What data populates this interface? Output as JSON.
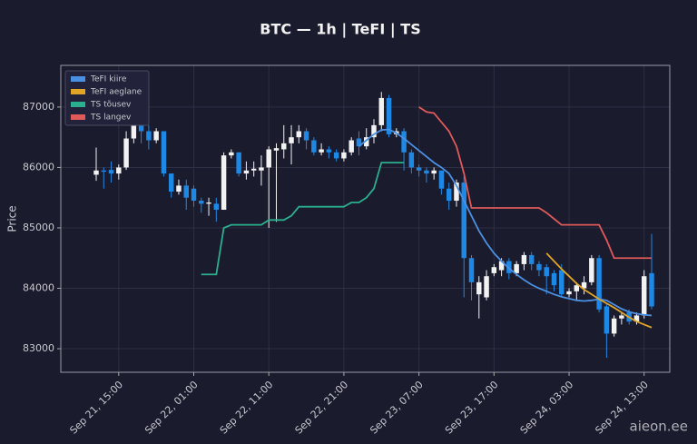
{
  "chart_data": {
    "type": "candlestick",
    "title": "BTC — 1h  |  TeFI  |  TS",
    "y_label": "Price",
    "watermark": "aieon.ee",
    "x": [
      "Sep 21, 12:00",
      "Sep 21, 13:00",
      "Sep 21, 14:00",
      "Sep 21, 15:00",
      "Sep 21, 16:00",
      "Sep 21, 17:00",
      "Sep 21, 18:00",
      "Sep 21, 19:00",
      "Sep 21, 20:00",
      "Sep 21, 21:00",
      "Sep 21, 22:00",
      "Sep 21, 23:00",
      "Sep 22, 00:00",
      "Sep 22, 01:00",
      "Sep 22, 02:00",
      "Sep 22, 03:00",
      "Sep 22, 04:00",
      "Sep 22, 05:00",
      "Sep 22, 06:00",
      "Sep 22, 07:00",
      "Sep 22, 08:00",
      "Sep 22, 09:00",
      "Sep 22, 10:00",
      "Sep 22, 11:00",
      "Sep 22, 12:00",
      "Sep 22, 13:00",
      "Sep 22, 14:00",
      "Sep 22, 15:00",
      "Sep 22, 16:00",
      "Sep 22, 17:00",
      "Sep 22, 18:00",
      "Sep 22, 19:00",
      "Sep 22, 20:00",
      "Sep 22, 21:00",
      "Sep 22, 22:00",
      "Sep 22, 23:00",
      "Sep 23, 00:00",
      "Sep 23, 01:00",
      "Sep 23, 02:00",
      "Sep 23, 03:00",
      "Sep 23, 04:00",
      "Sep 23, 05:00",
      "Sep 23, 06:00",
      "Sep 23, 07:00",
      "Sep 23, 08:00",
      "Sep 23, 09:00",
      "Sep 23, 10:00",
      "Sep 23, 11:00",
      "Sep 23, 12:00",
      "Sep 23, 13:00",
      "Sep 23, 14:00",
      "Sep 23, 15:00",
      "Sep 23, 16:00",
      "Sep 23, 17:00",
      "Sep 23, 18:00",
      "Sep 23, 19:00",
      "Sep 23, 20:00",
      "Sep 23, 21:00",
      "Sep 23, 22:00",
      "Sep 23, 23:00",
      "Sep 24, 00:00",
      "Sep 24, 01:00",
      "Sep 24, 02:00",
      "Sep 24, 03:00",
      "Sep 24, 04:00",
      "Sep 24, 05:00",
      "Sep 24, 06:00",
      "Sep 24, 07:00",
      "Sep 24, 08:00",
      "Sep 24, 09:00",
      "Sep 24, 10:00",
      "Sep 24, 11:00",
      "Sep 24, 12:00",
      "Sep 24, 13:00",
      "Sep 24, 14:00"
    ],
    "open": [
      85880,
      85950,
      85960,
      85900,
      86000,
      86480,
      86950,
      86600,
      86450,
      86600,
      85900,
      85600,
      85700,
      85650,
      85450,
      85400,
      85400,
      85300,
      86200,
      86250,
      85900,
      85950,
      85950,
      86000,
      86280,
      86300,
      86400,
      86500,
      86600,
      86450,
      86250,
      86300,
      86250,
      86150,
      86250,
      86480,
      86350,
      86500,
      86700,
      87150,
      86550,
      86600,
      86250,
      86000,
      85950,
      85900,
      85950,
      85650,
      85450,
      85750,
      84500,
      83900,
      83850,
      84250,
      84300,
      84450,
      84250,
      84400,
      84550,
      84400,
      84350,
      84250,
      84300,
      83900,
      83950,
      84000,
      84100,
      84500,
      83700,
      83250,
      83500,
      83600,
      83450,
      83550,
      84250
    ],
    "high": [
      86330,
      86000,
      86100,
      86050,
      86600,
      87100,
      86990,
      86700,
      86650,
      86600,
      85900,
      85800,
      85800,
      85700,
      85500,
      85500,
      85500,
      86250,
      86300,
      86250,
      86100,
      86100,
      86200,
      86350,
      86400,
      86700,
      86700,
      86700,
      86650,
      86500,
      86400,
      86350,
      86300,
      86300,
      86500,
      86600,
      86650,
      86800,
      87250,
      87200,
      86650,
      86650,
      86300,
      86050,
      86000,
      86000,
      85950,
      85750,
      85800,
      85850,
      84550,
      84200,
      84300,
      84400,
      84500,
      84500,
      84450,
      84600,
      84600,
      84450,
      84400,
      84300,
      84400,
      84000,
      84100,
      84200,
      84550,
      84550,
      83750,
      83550,
      83600,
      83650,
      83600,
      84300,
      84900
    ],
    "low": [
      85780,
      85650,
      85750,
      85800,
      85960,
      86400,
      86400,
      86300,
      86400,
      85850,
      85500,
      85550,
      85300,
      85350,
      85250,
      85200,
      85100,
      85300,
      86150,
      85850,
      85800,
      85850,
      85700,
      85000,
      85100,
      86150,
      86050,
      86400,
      86300,
      86200,
      86200,
      86150,
      86100,
      86100,
      86200,
      86200,
      86300,
      86400,
      86600,
      86500,
      86500,
      85950,
      85900,
      85850,
      85750,
      85800,
      85550,
      85300,
      85350,
      83850,
      83800,
      83500,
      83800,
      84200,
      84200,
      84150,
      84200,
      84300,
      84300,
      84200,
      83900,
      83950,
      83850,
      83850,
      83800,
      83900,
      84050,
      83600,
      82850,
      83200,
      83400,
      83400,
      83400,
      83500,
      83650
    ],
    "close": [
      85950,
      85930,
      85900,
      86000,
      86480,
      86900,
      86600,
      86450,
      86600,
      85900,
      85600,
      85700,
      85500,
      85450,
      85400,
      85420,
      85300,
      86200,
      86250,
      85900,
      85950,
      85980,
      86000,
      86300,
      86320,
      86400,
      86500,
      86600,
      86450,
      86250,
      86300,
      86250,
      86150,
      86250,
      86450,
      86350,
      86500,
      86700,
      87150,
      86550,
      86600,
      86250,
      86000,
      85950,
      85900,
      85950,
      85650,
      85450,
      85750,
      84500,
      84100,
      84100,
      84200,
      84350,
      84450,
      84250,
      84400,
      84550,
      84400,
      84300,
      84200,
      84050,
      83900,
      83950,
      84050,
      84100,
      84500,
      83650,
      83250,
      83500,
      83550,
      83450,
      83550,
      84200,
      83700
    ],
    "up_color": "#f2f2f2",
    "down_color": "#1e88e5",
    "series": [
      {
        "name": "TeFI kiire",
        "color": "#4a90e2",
        "values": [
          null,
          null,
          null,
          null,
          null,
          null,
          null,
          null,
          null,
          null,
          null,
          null,
          null,
          null,
          null,
          null,
          null,
          null,
          null,
          null,
          null,
          null,
          null,
          null,
          null,
          null,
          null,
          null,
          null,
          null,
          null,
          null,
          null,
          null,
          null,
          86350,
          86450,
          86550,
          86620,
          86630,
          86570,
          86480,
          86380,
          86280,
          86180,
          86080,
          86000,
          85900,
          85700,
          85450,
          85200,
          84950,
          84750,
          84580,
          84450,
          84330,
          84230,
          84140,
          84060,
          84000,
          83950,
          83900,
          83860,
          83830,
          83800,
          83790,
          83800,
          83820,
          83800,
          83730,
          83660,
          83610,
          83580,
          83560,
          83550
        ]
      },
      {
        "name": "TeFI aeglane",
        "color": "#e0a526",
        "values": [
          null,
          null,
          null,
          null,
          null,
          null,
          null,
          null,
          null,
          null,
          null,
          null,
          null,
          null,
          null,
          null,
          null,
          null,
          null,
          null,
          null,
          null,
          null,
          null,
          null,
          null,
          null,
          null,
          null,
          null,
          null,
          null,
          null,
          null,
          null,
          null,
          null,
          null,
          null,
          null,
          null,
          null,
          null,
          null,
          null,
          null,
          null,
          null,
          null,
          null,
          null,
          null,
          null,
          null,
          null,
          null,
          null,
          null,
          null,
          null,
          84580,
          84450,
          84320,
          84200,
          84080,
          83980,
          83900,
          83820,
          83750,
          83680,
          83600,
          83520,
          83450,
          83400,
          83350
        ]
      },
      {
        "name": "TS tõusev",
        "color": "#2bb08f",
        "values": [
          null,
          null,
          null,
          null,
          null,
          null,
          null,
          null,
          null,
          null,
          null,
          null,
          null,
          null,
          84230,
          84230,
          84230,
          85000,
          85050,
          85050,
          85050,
          85050,
          85050,
          85130,
          85130,
          85130,
          85200,
          85350,
          85350,
          85350,
          85350,
          85350,
          85350,
          85350,
          85420,
          85420,
          85500,
          85650,
          86080,
          86080,
          86080,
          86080,
          null,
          null,
          null,
          null,
          null,
          null,
          null,
          null,
          null,
          null,
          null,
          null,
          null,
          null,
          null,
          null,
          null,
          null,
          null,
          null,
          null,
          null,
          null,
          null,
          null,
          null,
          null,
          null,
          null,
          null,
          null,
          null,
          null
        ]
      },
      {
        "name": "TS langev",
        "color": "#e05a5a",
        "values": [
          null,
          null,
          null,
          null,
          null,
          null,
          null,
          null,
          null,
          null,
          null,
          null,
          null,
          null,
          null,
          null,
          null,
          null,
          null,
          null,
          null,
          null,
          null,
          null,
          null,
          null,
          null,
          null,
          null,
          null,
          null,
          null,
          null,
          null,
          null,
          null,
          null,
          null,
          null,
          null,
          null,
          null,
          null,
          87000,
          86920,
          86900,
          86750,
          86600,
          86350,
          85900,
          85330,
          85330,
          85330,
          85330,
          85330,
          85330,
          85330,
          85330,
          85330,
          85330,
          85250,
          85150,
          85050,
          85050,
          85050,
          85050,
          85050,
          85050,
          84800,
          84500,
          84500,
          84500,
          84500,
          84500,
          84500
        ]
      }
    ],
    "ylim": [
      82610,
      87690
    ],
    "yticks": [
      83000,
      84000,
      85000,
      86000,
      87000
    ],
    "xticks": [
      "Sep 21, 15:00",
      "Sep 22, 01:00",
      "Sep 22, 11:00",
      "Sep 22, 21:00",
      "Sep 23, 07:00",
      "Sep 23, 17:00",
      "Sep 24, 03:00",
      "Sep 24, 13:00"
    ],
    "grid": true,
    "legend": "upper left"
  }
}
